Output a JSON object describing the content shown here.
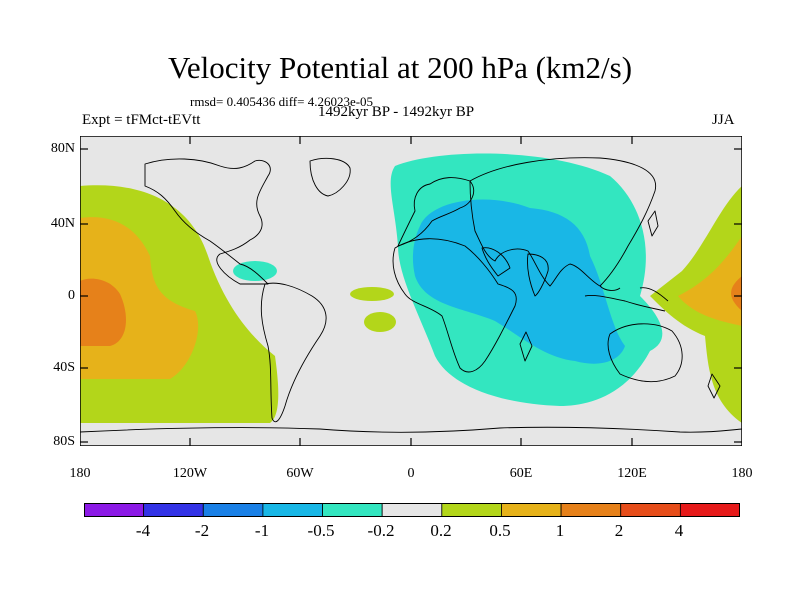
{
  "title": "Velocity Potential at 200 hPa (km2/s)",
  "stats": "rmsd= 0.405436 diff= 4.26023e-05",
  "experiment": "Expt = tFMct-tEVtt",
  "period": "1492kyr BP - 1492kyr BP",
  "season": "JJA",
  "map": {
    "lat_labels": [
      "80N",
      "40N",
      "0",
      "40S",
      "80S"
    ],
    "lon_labels": [
      "180",
      "120W",
      "60W",
      "0",
      "60E",
      "120E",
      "180"
    ],
    "colors": {
      "background": "#e6e6e6",
      "neg_0_5_to_neg_0_2": "#33e6c0",
      "neg_1_to_neg_0_5": "#19b7e6",
      "pos_0_2_to_0_5": "#b3d61a",
      "pos_0_5_to_1": "#e6b21a",
      "pos_1_to_2": "#e6811a"
    }
  },
  "colorbar": {
    "labels": [
      "-4",
      "-2",
      "-1",
      "-0.5",
      "-0.2",
      "0.2",
      "0.5",
      "1",
      "2",
      "4"
    ],
    "colors": [
      "#8c1ae6",
      "#3333e6",
      "#1a80e6",
      "#19b7e6",
      "#33e6c0",
      "#e6e6e6",
      "#b3d61a",
      "#e6b21a",
      "#e6811a",
      "#e64d1a",
      "#e61a1a"
    ]
  }
}
